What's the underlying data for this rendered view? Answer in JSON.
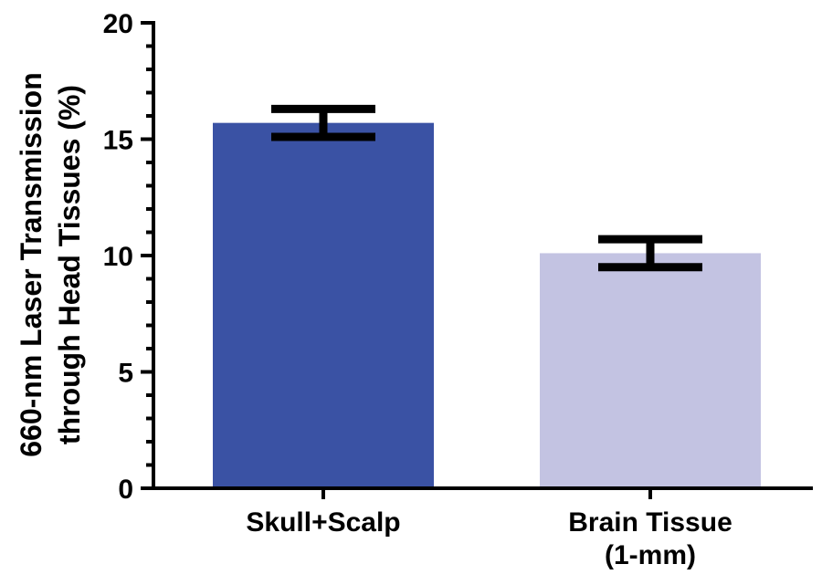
{
  "chart_data": {
    "type": "bar",
    "categories": [
      "Skull+Scalp",
      "Brain Tissue (1-mm)"
    ],
    "category_lines": [
      [
        "Skull+Scalp"
      ],
      [
        "Brain Tissue",
        "(1-mm)"
      ]
    ],
    "values": [
      15.7,
      10.1
    ],
    "error": [
      0.6,
      0.6
    ],
    "colors": [
      "#3a52a4",
      "#c3c3e2"
    ],
    "ylabel": "660-nm Laser Transmission through Head Tissues (%)",
    "ylabel_lines": [
      "660-nm Laser Transmission",
      "through Head Tissues (%)"
    ],
    "ylim": [
      0,
      20
    ],
    "yticks": [
      0,
      5,
      10,
      15,
      20
    ],
    "grid": false,
    "legend": "none"
  }
}
